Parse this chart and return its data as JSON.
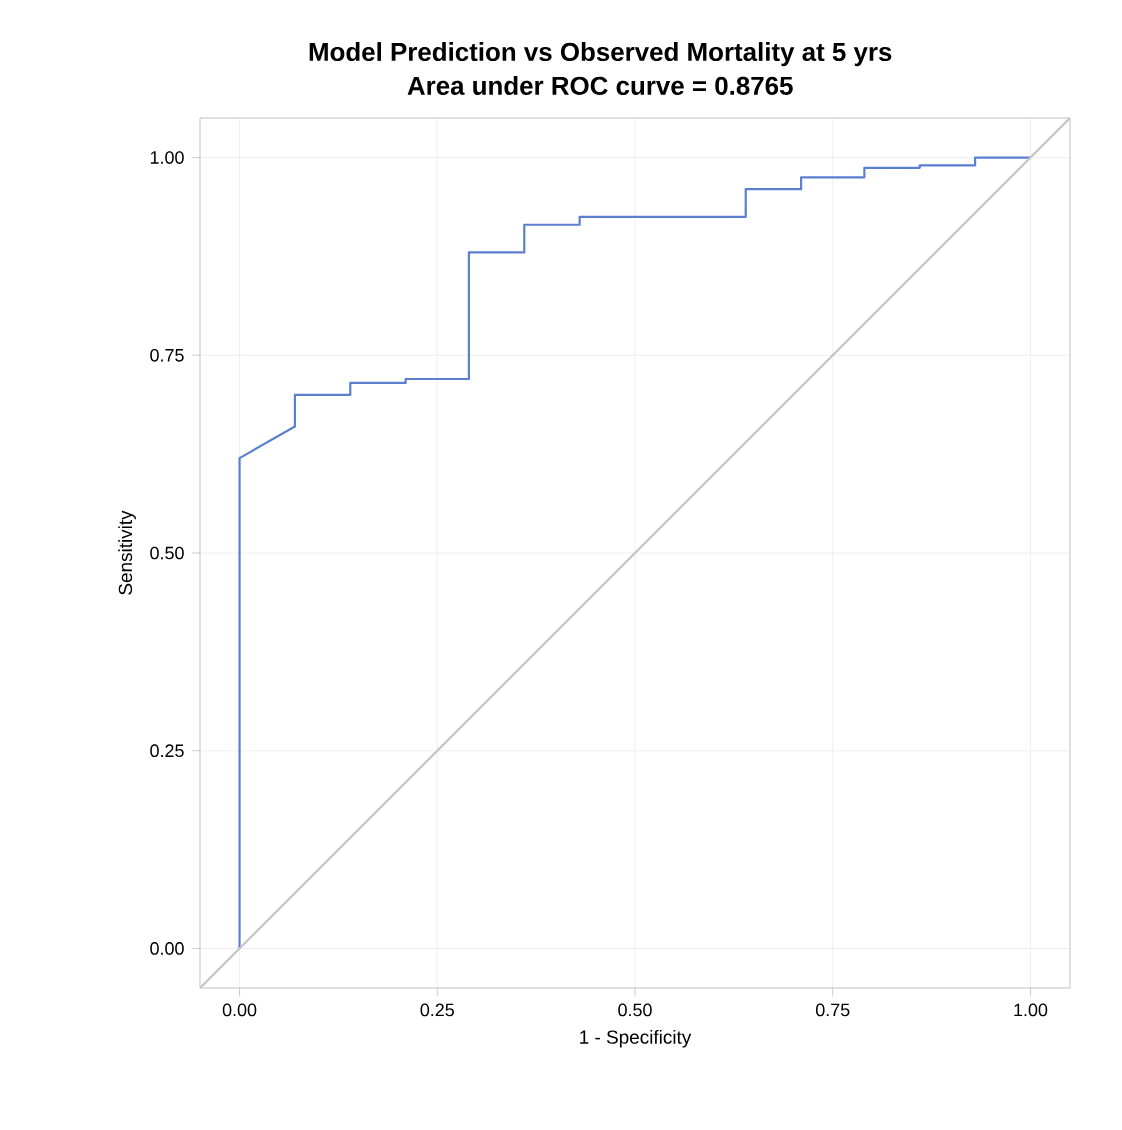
{
  "chart_data": {
    "type": "line",
    "title": "Model Prediction  vs Observed Mortality at 5 yrs",
    "subtitle": "Area under  ROC curve = 0.8765",
    "xlabel": "1 - Specificity",
    "ylabel": "Sensitivity",
    "series": [
      {
        "color": "#5b7fcf",
        "x": [
          0,
          0,
          0.07,
          0.07,
          0.14,
          0.14,
          0.21,
          0.21,
          0.29,
          0.29,
          0.36,
          0.36,
          0.43,
          0.43,
          0.64,
          0.64,
          0.71,
          0.71,
          0.79,
          0.79,
          0.86,
          0.86,
          0.93,
          0.93,
          1
        ],
        "values": [
          0,
          0.62,
          0.66,
          0.7,
          0.7,
          0.715,
          0.715,
          0.72,
          0.72,
          0.88,
          0.88,
          0.915,
          0.915,
          0.925,
          0.925,
          0.96,
          0.96,
          0.975,
          0.975,
          0.987,
          0.987,
          0.99,
          0.99,
          1,
          1
        ]
      },
      {
        "color": "#c4c4c4",
        "x": [
          -0.05,
          1.05
        ],
        "values": [
          -0.05,
          1.05
        ]
      }
    ],
    "xlim": [
      -0.05,
      1.05
    ],
    "ylim": [
      -0.05,
      1.05
    ],
    "xticks": [
      {
        "value": 0,
        "label": "0.00"
      },
      {
        "value": 0.25,
        "label": "0.25"
      },
      {
        "value": 0.5,
        "label": "0.50"
      },
      {
        "value": 0.75,
        "label": "0.75"
      },
      {
        "value": 1,
        "label": "1.00"
      }
    ],
    "yticks": [
      {
        "value": 0,
        "label": "0.00"
      },
      {
        "value": 0.25,
        "label": "0.25"
      },
      {
        "value": 0.5,
        "label": "0.50"
      },
      {
        "value": 0.75,
        "label": "0.75"
      },
      {
        "value": 1,
        "label": "1.00"
      }
    ],
    "grid": true,
    "marker": "none",
    "line_style": "solid"
  }
}
